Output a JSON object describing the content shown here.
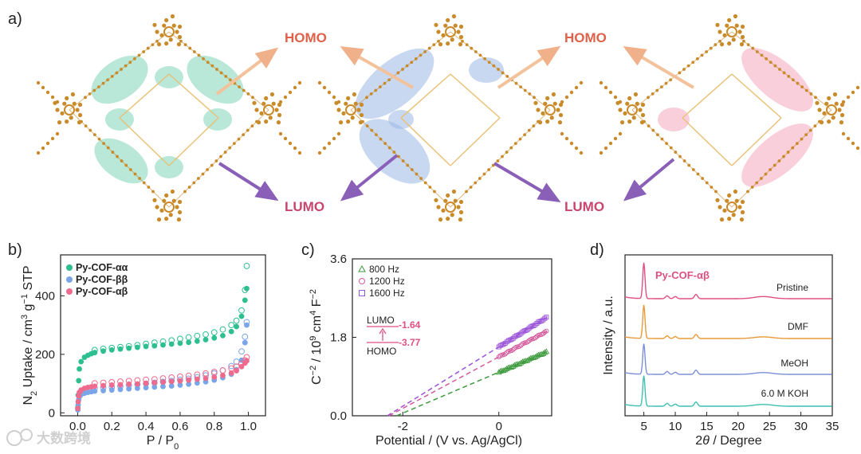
{
  "panels": {
    "a": {
      "label": "a)",
      "structures": [
        {
          "homo": "HOMO",
          "lumo": "LUMO"
        },
        {
          "homo": "HOMO",
          "lumo": "LUMO"
        },
        {
          "homo": "",
          "lumo": ""
        }
      ],
      "colors": {
        "homo": "#e0614a",
        "lumo": "#c8456e",
        "atom": "#c98a2a",
        "green": "#7fd4b8",
        "blue": "#9db8e6",
        "pink": "#f4a7c0"
      }
    },
    "b": {
      "label": "b)"
    },
    "c": {
      "label": "c)"
    },
    "d": {
      "label": "d)"
    }
  },
  "watermark": "大数跨境",
  "chart_data": [
    {
      "type": "scatter",
      "panel": "b",
      "xlabel_main": "P / P",
      "xlabel_sub": "0",
      "ylabel_parts": [
        "N",
        "2",
        " Uptake / cm",
        "3",
        " g",
        "−1",
        " STP"
      ],
      "xlim": [
        -0.1,
        1.1
      ],
      "ylim": [
        -10,
        540
      ],
      "xticks": [
        "0.0",
        "0.2",
        "0.4",
        "0.6",
        "0.8",
        "1.0"
      ],
      "xtick_values": [
        0,
        0.2,
        0.4,
        0.6,
        0.8,
        1.0
      ],
      "yticks": [
        "0",
        "200",
        "400"
      ],
      "ytick_values": [
        0,
        200,
        400
      ],
      "series": [
        {
          "name": "Py-COF-αα",
          "color": "#2dbf8f",
          "adsorption": [
            [
              0.001,
              20
            ],
            [
              0.003,
              60
            ],
            [
              0.006,
              110
            ],
            [
              0.01,
              150
            ],
            [
              0.02,
              175
            ],
            [
              0.04,
              190
            ],
            [
              0.06,
              197
            ],
            [
              0.08,
              202
            ],
            [
              0.1,
              206
            ],
            [
              0.15,
              211
            ],
            [
              0.2,
              215
            ],
            [
              0.25,
              218
            ],
            [
              0.3,
              221
            ],
            [
              0.35,
              224
            ],
            [
              0.4,
              227
            ],
            [
              0.45,
              229
            ],
            [
              0.5,
              232
            ],
            [
              0.55,
              235
            ],
            [
              0.6,
              238
            ],
            [
              0.65,
              241
            ],
            [
              0.7,
              245
            ],
            [
              0.75,
              250
            ],
            [
              0.8,
              256
            ],
            [
              0.85,
              264
            ],
            [
              0.9,
              278
            ],
            [
              0.93,
              295
            ],
            [
              0.96,
              330
            ],
            [
              0.98,
              385
            ],
            [
              0.99,
              425
            ]
          ],
          "desorption": [
            [
              0.99,
              502
            ],
            [
              0.98,
              420
            ],
            [
              0.96,
              350
            ],
            [
              0.93,
              315
            ],
            [
              0.9,
              300
            ],
            [
              0.85,
              285
            ],
            [
              0.8,
              275
            ],
            [
              0.75,
              268
            ],
            [
              0.7,
              263
            ],
            [
              0.65,
              258
            ],
            [
              0.6,
              253
            ],
            [
              0.55,
              248
            ],
            [
              0.5,
              244
            ],
            [
              0.45,
              240
            ],
            [
              0.4,
              236
            ],
            [
              0.35,
              232
            ],
            [
              0.3,
              228
            ],
            [
              0.25,
              225
            ],
            [
              0.2,
              222
            ],
            [
              0.15,
              219
            ],
            [
              0.1,
              215
            ]
          ]
        },
        {
          "name": "Py-COF-ββ",
          "color": "#7aa5e8",
          "adsorption": [
            [
              0.001,
              10
            ],
            [
              0.003,
              28
            ],
            [
              0.006,
              45
            ],
            [
              0.01,
              55
            ],
            [
              0.02,
              62
            ],
            [
              0.04,
              67
            ],
            [
              0.06,
              70
            ],
            [
              0.08,
              72
            ],
            [
              0.1,
              74
            ],
            [
              0.15,
              76
            ],
            [
              0.2,
              78
            ],
            [
              0.25,
              80
            ],
            [
              0.3,
              82
            ],
            [
              0.35,
              84
            ],
            [
              0.4,
              86
            ],
            [
              0.45,
              88
            ],
            [
              0.5,
              90
            ],
            [
              0.55,
              92
            ],
            [
              0.6,
              95
            ],
            [
              0.65,
              98
            ],
            [
              0.7,
              102
            ],
            [
              0.75,
              106
            ],
            [
              0.8,
              112
            ],
            [
              0.85,
              120
            ],
            [
              0.9,
              132
            ],
            [
              0.93,
              148
            ],
            [
              0.96,
              180
            ],
            [
              0.98,
              240
            ],
            [
              0.99,
              300
            ]
          ],
          "desorption": [
            [
              0.99,
              310
            ],
            [
              0.98,
              260
            ],
            [
              0.96,
              210
            ],
            [
              0.93,
              175
            ],
            [
              0.9,
              160
            ],
            [
              0.85,
              145
            ],
            [
              0.8,
              135
            ],
            [
              0.75,
              128
            ],
            [
              0.7,
              122
            ],
            [
              0.65,
              117
            ],
            [
              0.6,
              113
            ],
            [
              0.55,
              109
            ],
            [
              0.5,
              106
            ],
            [
              0.45,
              103
            ],
            [
              0.4,
              100
            ],
            [
              0.35,
              97
            ],
            [
              0.3,
              94
            ],
            [
              0.25,
              91
            ],
            [
              0.2,
              88
            ],
            [
              0.15,
              86
            ],
            [
              0.1,
              84
            ]
          ]
        },
        {
          "name": "Py-COF-αβ",
          "color": "#ef6b8e",
          "adsorption": [
            [
              0.001,
              15
            ],
            [
              0.003,
              38
            ],
            [
              0.006,
              58
            ],
            [
              0.01,
              70
            ],
            [
              0.02,
              78
            ],
            [
              0.04,
              84
            ],
            [
              0.06,
              87
            ],
            [
              0.08,
              89
            ],
            [
              0.1,
              91
            ],
            [
              0.15,
              93
            ],
            [
              0.2,
              95
            ],
            [
              0.25,
              96
            ],
            [
              0.3,
              98
            ],
            [
              0.35,
              99
            ],
            [
              0.4,
              101
            ],
            [
              0.45,
              103
            ],
            [
              0.5,
              105
            ],
            [
              0.55,
              107
            ],
            [
              0.6,
              109
            ],
            [
              0.65,
              112
            ],
            [
              0.7,
              115
            ],
            [
              0.75,
              118
            ],
            [
              0.8,
              122
            ],
            [
              0.85,
              128
            ],
            [
              0.9,
              136
            ],
            [
              0.93,
              144
            ],
            [
              0.96,
              158
            ],
            [
              0.98,
              170
            ],
            [
              0.99,
              178
            ]
          ],
          "desorption": [
            [
              0.99,
              190
            ],
            [
              0.98,
              180
            ],
            [
              0.96,
              168
            ],
            [
              0.93,
              158
            ],
            [
              0.9,
              152
            ],
            [
              0.85,
              145
            ],
            [
              0.8,
              140
            ],
            [
              0.75,
              135
            ],
            [
              0.7,
              131
            ],
            [
              0.65,
              127
            ],
            [
              0.6,
              124
            ],
            [
              0.55,
              121
            ],
            [
              0.5,
              118
            ],
            [
              0.45,
              115
            ],
            [
              0.4,
              113
            ],
            [
              0.35,
              111
            ],
            [
              0.3,
              109
            ],
            [
              0.25,
              107
            ],
            [
              0.2,
              105
            ],
            [
              0.15,
              103
            ],
            [
              0.1,
              101
            ]
          ]
        }
      ]
    },
    {
      "type": "line",
      "panel": "c",
      "xlabel": "Potential / (V vs. Ag/AgCl)",
      "ylabel_parts": [
        "C",
        "−2",
        " / 10",
        "9",
        " cm",
        "4",
        " F",
        "−2"
      ],
      "xlim": [
        -3.05,
        1.1
      ],
      "ylim": [
        0,
        3.6
      ],
      "xticks": [
        "-2",
        "0"
      ],
      "xtick_values": [
        -2,
        0
      ],
      "yticks": [
        "0.0",
        "1.8",
        "3.6"
      ],
      "ytick_values": [
        0,
        1.8,
        3.6
      ],
      "series": [
        {
          "name": "800 Hz",
          "color": "#3d9a3d",
          "marker": "triangle",
          "slope": 0.47,
          "intercept": 1.0,
          "x_start": -1.55
        },
        {
          "name": "1200 Hz",
          "color": "#d25a9c",
          "marker": "circle",
          "slope": 0.59,
          "intercept": 1.35,
          "x_start": -1.6
        },
        {
          "name": "1600 Hz",
          "color": "#9b55d8",
          "marker": "square",
          "slope": 0.68,
          "intercept": 1.58,
          "x_start": -1.65
        }
      ],
      "inset": {
        "lumo_label": "LUMO",
        "lumo_value": "-1.64",
        "homo_label": "HOMO",
        "homo_value": "-3.77",
        "value_color": "#e0507f"
      }
    },
    {
      "type": "line",
      "panel": "d",
      "xlabel_main": "θ / Degree",
      "xlabel_prefix": "2",
      "ylabel": "Intensity / a.u.",
      "xlim": [
        2,
        35
      ],
      "xticks": [
        "5",
        "10",
        "15",
        "20",
        "25",
        "30",
        "35"
      ],
      "xtick_values": [
        5,
        10,
        15,
        20,
        25,
        30,
        35
      ],
      "title": "Py-COF-αβ",
      "title_color": "#e0507f",
      "peaks": [
        5.0,
        8.7,
        10.0,
        13.3,
        24.0
      ],
      "series": [
        {
          "name": "Pristine",
          "color": "#e0507f",
          "baseline_offset": 3,
          "peak_heights": [
            1.0,
            0.08,
            0.06,
            0.12,
            0.06
          ]
        },
        {
          "name": "DMF",
          "color": "#e89a3a",
          "baseline_offset": 2,
          "peak_heights": [
            1.0,
            0.08,
            0.06,
            0.12,
            0.05
          ]
        },
        {
          "name": "MeOH",
          "color": "#7c8fd6",
          "baseline_offset": 1,
          "peak_heights": [
            0.85,
            0.08,
            0.06,
            0.12,
            0.05
          ]
        },
        {
          "name": "6.0 M KOH",
          "color": "#3fc0b0",
          "baseline_offset": 0,
          "peak_heights": [
            0.85,
            0.08,
            0.06,
            0.12,
            0.05
          ]
        }
      ]
    }
  ]
}
